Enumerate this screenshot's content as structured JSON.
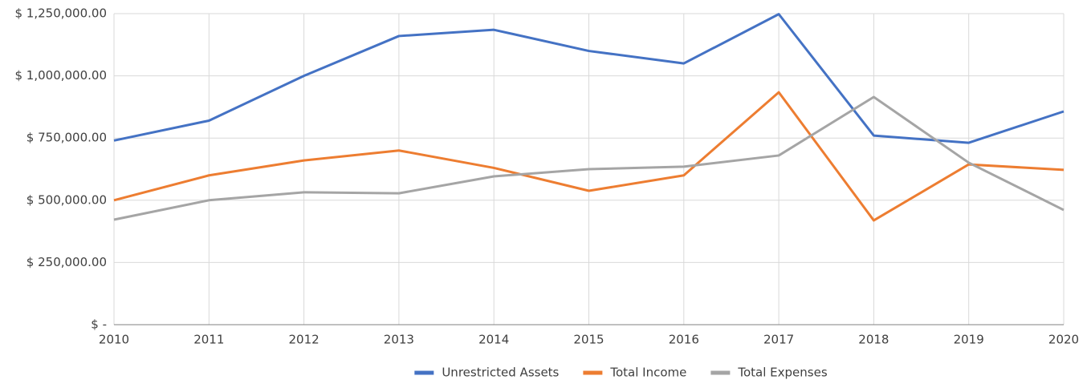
{
  "chart_data": {
    "type": "line",
    "x": [
      2010,
      2011,
      2012,
      2013,
      2014,
      2015,
      2016,
      2017,
      2018,
      2019,
      2020
    ],
    "xlim": [
      2010,
      2020
    ],
    "xticks": [
      2010,
      2011,
      2012,
      2013,
      2014,
      2015,
      2016,
      2017,
      2018,
      2019,
      2020
    ],
    "ylim": [
      0,
      1250000
    ],
    "yticks": [
      {
        "value": 0,
        "label": "$ -"
      },
      {
        "value": 250000,
        "label": "$ 250,000.00"
      },
      {
        "value": 500000,
        "label": "$ 500,000.00"
      },
      {
        "value": 750000,
        "label": "$ 750,000.00"
      },
      {
        "value": 1000000,
        "label": "$ 1,000,000.00"
      },
      {
        "value": 1250000,
        "label": "$ 1,250,000.00"
      }
    ],
    "grid": true,
    "legend": "bottom",
    "series": [
      {
        "name": "Unrestricted Assets",
        "color": "#4472c4",
        "values": [
          740000,
          820000,
          1000000,
          1160000,
          1185000,
          1100000,
          1050000,
          1248000,
          760000,
          731000,
          857000
        ]
      },
      {
        "name": "Total Income",
        "color": "#ed7d31",
        "values": [
          500000,
          600000,
          660000,
          700000,
          630000,
          538000,
          600000,
          934000,
          419000,
          644000,
          622000
        ]
      },
      {
        "name": "Total Expenses",
        "color": "#a5a5a5",
        "values": [
          422000,
          500000,
          532000,
          528000,
          596000,
          625000,
          635000,
          680000,
          915000,
          651000,
          461000
        ]
      }
    ]
  }
}
